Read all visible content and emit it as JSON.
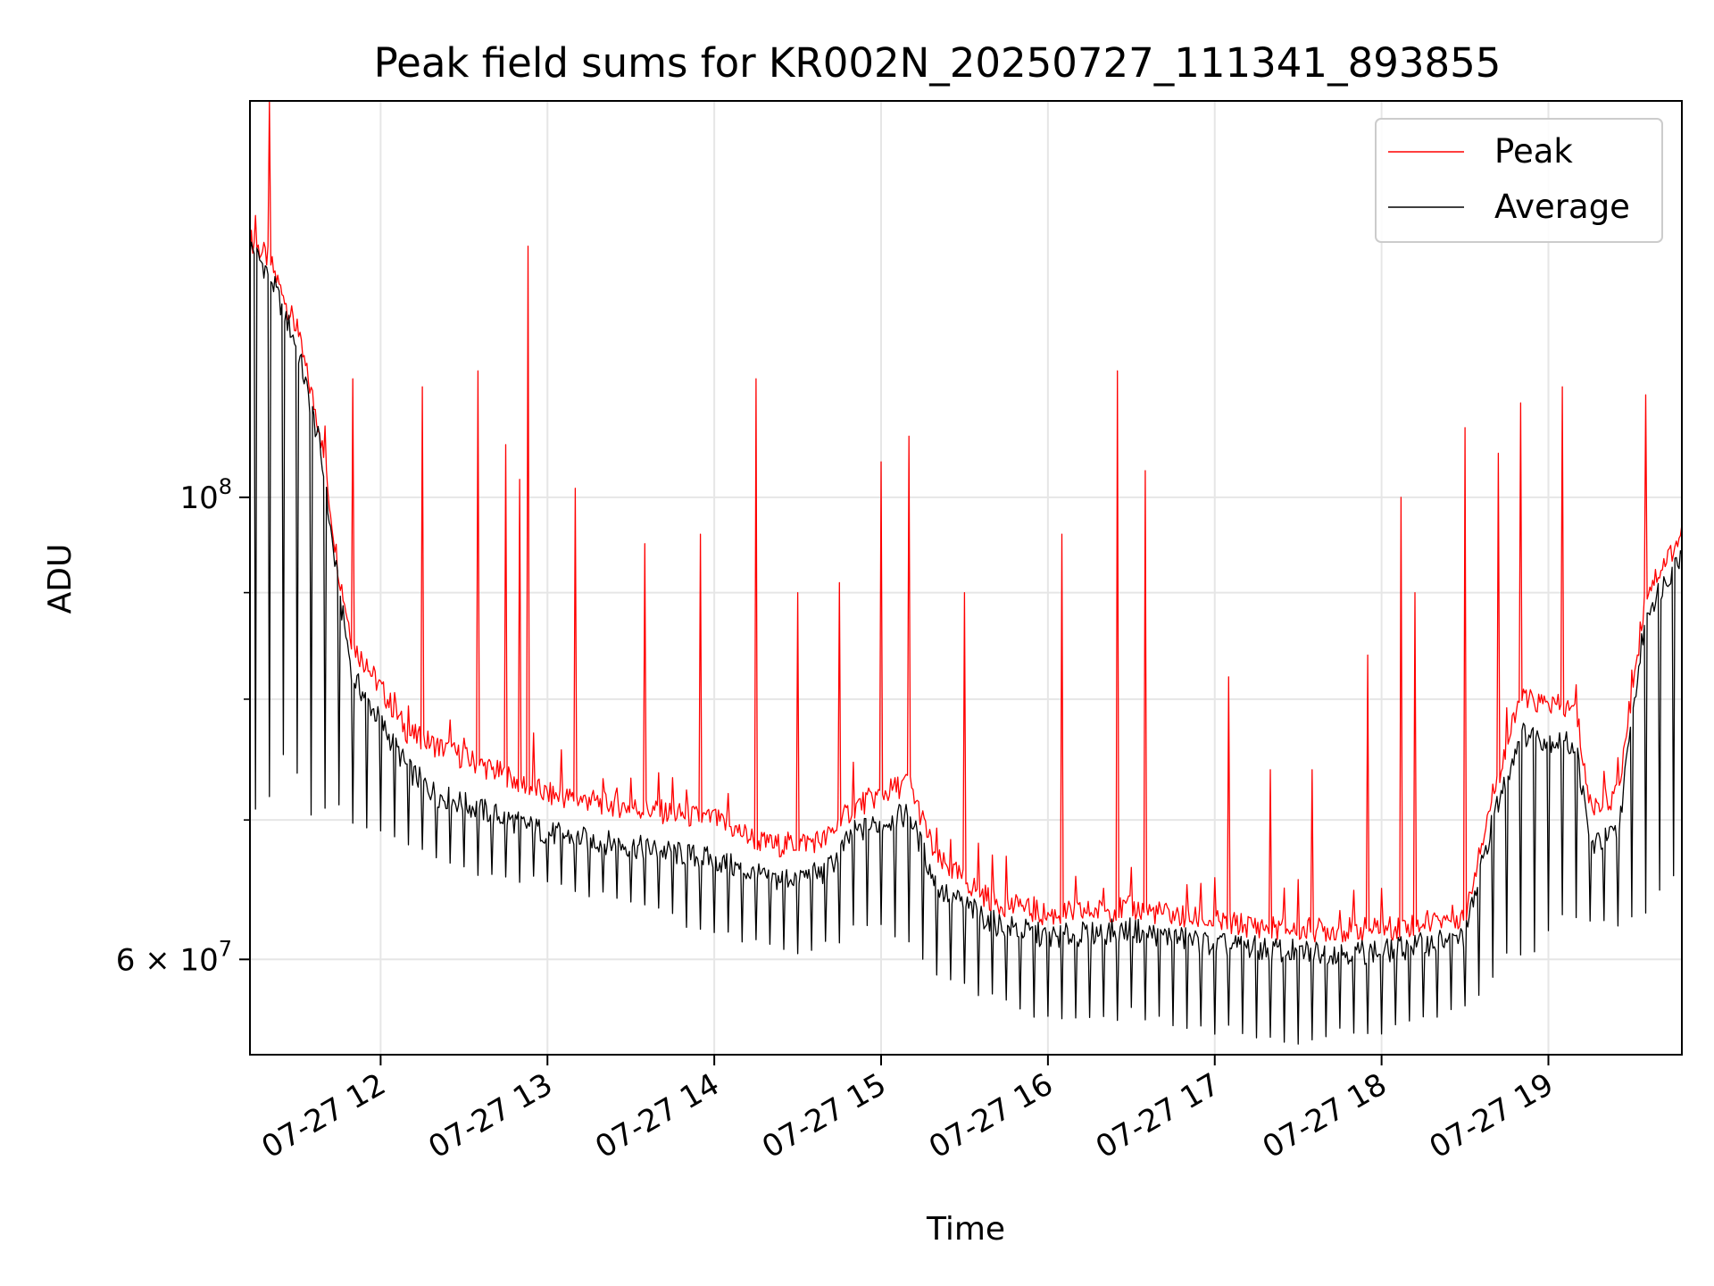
{
  "chart_data": {
    "type": "line",
    "title": "Peak field sums for KR002N_20250727_111341_893855",
    "xlabel": "Time",
    "ylabel": "ADU",
    "yscale": "log",
    "xlim": [
      "2025-07-27 11:13",
      "2025-07-27 19:48"
    ],
    "ylim": [
      54000000,
      155000000
    ],
    "x_ticks": [
      {
        "time": "2025-07-27 12:00",
        "label": "07-27 12"
      },
      {
        "time": "2025-07-27 13:00",
        "label": "07-27 13"
      },
      {
        "time": "2025-07-27 14:00",
        "label": "07-27 14"
      },
      {
        "time": "2025-07-27 15:00",
        "label": "07-27 15"
      },
      {
        "time": "2025-07-27 16:00",
        "label": "07-27 16"
      },
      {
        "time": "2025-07-27 17:00",
        "label": "07-27 17"
      },
      {
        "time": "2025-07-27 18:00",
        "label": "07-27 18"
      },
      {
        "time": "2025-07-27 19:00",
        "label": "07-27 19"
      }
    ],
    "y_ticks_major": [
      {
        "value": 100000000,
        "base": "10",
        "exp": "8"
      },
      {
        "value": 60000000,
        "mantissa": "6",
        "base": "10",
        "exp": "7"
      }
    ],
    "y_minor_values": [
      70000000,
      80000000,
      90000000
    ],
    "grid": true,
    "legend_position": "upper-right",
    "series": [
      {
        "name": "Peak",
        "color": "#ff0000",
        "baseline": [
          [
            "2025-07-27 11:13",
            133000000
          ],
          [
            "2025-07-27 11:20",
            130000000
          ],
          [
            "2025-07-27 11:30",
            120000000
          ],
          [
            "2025-07-27 11:38",
            108000000
          ],
          [
            "2025-07-27 11:45",
            92000000
          ],
          [
            "2025-07-27 11:50",
            85000000
          ],
          [
            "2025-07-27 12:00",
            81000000
          ],
          [
            "2025-07-27 12:10",
            77000000
          ],
          [
            "2025-07-27 12:20",
            76000000
          ],
          [
            "2025-07-27 12:40",
            74000000
          ],
          [
            "2025-07-27 13:00",
            72000000
          ],
          [
            "2025-07-27 13:30",
            71000000
          ],
          [
            "2025-07-27 14:00",
            70000000
          ],
          [
            "2025-07-27 14:20",
            68000000
          ],
          [
            "2025-07-27 14:40",
            68500000
          ],
          [
            "2025-07-27 14:50",
            71000000
          ],
          [
            "2025-07-27 15:10",
            73000000
          ],
          [
            "2025-07-27 15:20",
            67000000
          ],
          [
            "2025-07-27 15:40",
            64000000
          ],
          [
            "2025-07-27 16:00",
            63000000
          ],
          [
            "2025-07-27 16:30",
            63500000
          ],
          [
            "2025-07-27 17:00",
            62500000
          ],
          [
            "2025-07-27 17:30",
            62000000
          ],
          [
            "2025-07-27 18:00",
            62000000
          ],
          [
            "2025-07-27 18:30",
            63000000
          ],
          [
            "2025-07-27 18:40",
            72000000
          ],
          [
            "2025-07-27 18:50",
            80000000
          ],
          [
            "2025-07-27 19:10",
            79000000
          ],
          [
            "2025-07-27 19:15",
            71000000
          ],
          [
            "2025-07-27 19:25",
            72000000
          ],
          [
            "2025-07-27 19:35",
            90000000
          ],
          [
            "2025-07-27 19:48",
            96000000
          ]
        ],
        "spikes": [
          [
            "2025-07-27 11:20",
            155000000
          ],
          [
            "2025-07-27 11:50",
            114000000
          ],
          [
            "2025-07-27 12:15",
            113000000
          ],
          [
            "2025-07-27 12:35",
            115000000
          ],
          [
            "2025-07-27 12:45",
            106000000
          ],
          [
            "2025-07-27 12:50",
            102000000
          ],
          [
            "2025-07-27 12:53",
            132000000
          ],
          [
            "2025-07-27 13:10",
            101000000
          ],
          [
            "2025-07-27 13:35",
            95000000
          ],
          [
            "2025-07-27 13:55",
            96000000
          ],
          [
            "2025-07-27 14:15",
            114000000
          ],
          [
            "2025-07-27 14:30",
            90000000
          ],
          [
            "2025-07-27 14:45",
            91000000
          ],
          [
            "2025-07-27 15:00",
            104000000
          ],
          [
            "2025-07-27 15:10",
            107000000
          ],
          [
            "2025-07-27 15:30",
            90000000
          ],
          [
            "2025-07-27 16:05",
            96000000
          ],
          [
            "2025-07-27 16:25",
            115000000
          ],
          [
            "2025-07-27 16:35",
            103000000
          ],
          [
            "2025-07-27 17:05",
            82000000
          ],
          [
            "2025-07-27 17:20",
            74000000
          ],
          [
            "2025-07-27 17:35",
            74000000
          ],
          [
            "2025-07-27 17:55",
            84000000
          ],
          [
            "2025-07-27 18:07",
            100000000
          ],
          [
            "2025-07-27 18:12",
            90000000
          ],
          [
            "2025-07-27 18:30",
            108000000
          ],
          [
            "2025-07-27 18:42",
            105000000
          ],
          [
            "2025-07-27 18:50",
            111000000
          ],
          [
            "2025-07-27 19:05",
            113000000
          ],
          [
            "2025-07-27 19:35",
            112000000
          ]
        ]
      },
      {
        "name": "Average",
        "color": "#000000",
        "baseline": [
          [
            "2025-07-27 11:13",
            132000000
          ],
          [
            "2025-07-27 11:20",
            128000000
          ],
          [
            "2025-07-27 11:30",
            118000000
          ],
          [
            "2025-07-27 11:38",
            106000000
          ],
          [
            "2025-07-27 11:45",
            90000000
          ],
          [
            "2025-07-27 11:50",
            82000000
          ],
          [
            "2025-07-27 12:00",
            78000000
          ],
          [
            "2025-07-27 12:10",
            74000000
          ],
          [
            "2025-07-27 12:20",
            72000000
          ],
          [
            "2025-07-27 12:40",
            70500000
          ],
          [
            "2025-07-27 13:00",
            69000000
          ],
          [
            "2025-07-27 13:30",
            68000000
          ],
          [
            "2025-07-27 14:00",
            67000000
          ],
          [
            "2025-07-27 14:20",
            65500000
          ],
          [
            "2025-07-27 14:40",
            66000000
          ],
          [
            "2025-07-27 14:50",
            69000000
          ],
          [
            "2025-07-27 15:10",
            70500000
          ],
          [
            "2025-07-27 15:20",
            65000000
          ],
          [
            "2025-07-27 15:40",
            62500000
          ],
          [
            "2025-07-27 16:00",
            61500000
          ],
          [
            "2025-07-27 16:30",
            62000000
          ],
          [
            "2025-07-27 17:00",
            61000000
          ],
          [
            "2025-07-27 17:30",
            60500000
          ],
          [
            "2025-07-27 18:00",
            60500000
          ],
          [
            "2025-07-27 18:30",
            61500000
          ],
          [
            "2025-07-27 18:40",
            70000000
          ],
          [
            "2025-07-27 18:50",
            77000000
          ],
          [
            "2025-07-27 19:10",
            76000000
          ],
          [
            "2025-07-27 19:15",
            68000000
          ],
          [
            "2025-07-27 19:25",
            69000000
          ],
          [
            "2025-07-27 19:35",
            88000000
          ],
          [
            "2025-07-27 19:48",
            94000000
          ]
        ],
        "dips": [
          [
            "2025-07-27 12:00",
            69000000
          ],
          [
            "2025-07-27 12:30",
            66000000
          ],
          [
            "2025-07-27 13:00",
            65000000
          ],
          [
            "2025-07-27 13:30",
            63500000
          ],
          [
            "2025-07-27 14:00",
            61500000
          ],
          [
            "2025-07-27 14:30",
            60000000
          ],
          [
            "2025-07-27 15:00",
            62000000
          ],
          [
            "2025-07-27 15:30",
            57500000
          ],
          [
            "2025-07-27 16:00",
            56000000
          ],
          [
            "2025-07-27 16:30",
            56000000
          ],
          [
            "2025-07-27 17:00",
            55000000
          ],
          [
            "2025-07-27 17:30",
            54500000
          ],
          [
            "2025-07-27 18:00",
            55000000
          ],
          [
            "2025-07-27 18:30",
            56500000
          ],
          [
            "2025-07-27 19:10",
            62000000
          ]
        ]
      }
    ]
  }
}
